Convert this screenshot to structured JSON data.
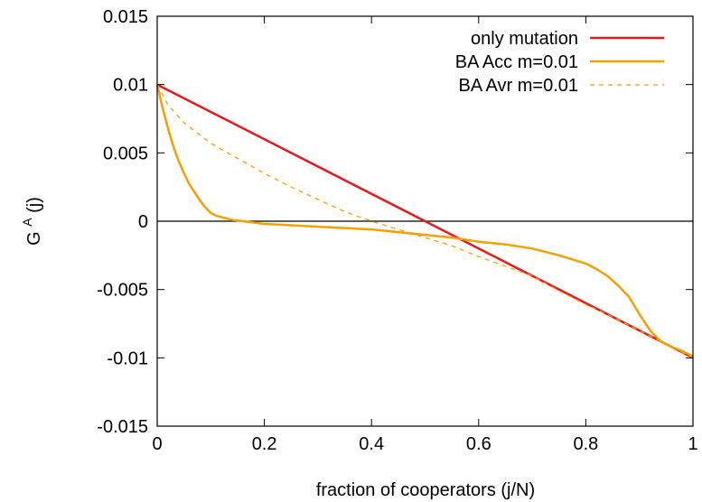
{
  "chart_data": {
    "type": "line",
    "title": "",
    "xlabel": "fraction of cooperators (j/N)",
    "ylabel": "G",
    "ylabel_sup": "A",
    "ylabel_suffix": " (j)",
    "xlim": [
      0,
      1
    ],
    "ylim": [
      -0.015,
      0.015
    ],
    "xticks": [
      0,
      0.2,
      0.4,
      0.6,
      0.8,
      1
    ],
    "xtick_labels": [
      "0",
      "0.2",
      "0.4",
      "0.6",
      "0.8",
      "1"
    ],
    "yticks": [
      -0.015,
      -0.01,
      -0.005,
      0,
      0.005,
      0.01,
      0.015
    ],
    "ytick_labels": [
      "-0.015",
      "-0.01",
      "-0.005",
      "0",
      "0.005",
      "0.01",
      "0.015"
    ],
    "grid": false,
    "legend_position": "top-right",
    "zero_line": true,
    "series": [
      {
        "name": "only mutation",
        "color": "#e41a1c",
        "style": "solid",
        "x": [
          0,
          1
        ],
        "y": [
          0.01,
          -0.01
        ]
      },
      {
        "name": "BA Acc m=0.01",
        "color": "#f5a000",
        "style": "solid",
        "x": [
          0,
          0.01,
          0.02,
          0.03,
          0.04,
          0.05,
          0.06,
          0.07,
          0.08,
          0.09,
          0.1,
          0.11,
          0.12,
          0.13,
          0.14,
          0.16,
          0.18,
          0.2,
          0.25,
          0.3,
          0.35,
          0.4,
          0.45,
          0.5,
          0.55,
          0.6,
          0.65,
          0.7,
          0.75,
          0.8,
          0.82,
          0.84,
          0.86,
          0.88,
          0.9,
          0.92,
          0.94,
          0.96,
          0.98,
          1.0
        ],
        "y": [
          0.01,
          0.0083,
          0.0068,
          0.0055,
          0.0044,
          0.0035,
          0.0027,
          0.0021,
          0.0015,
          0.001,
          0.0006,
          0.0004,
          0.0003,
          0.0002,
          0.0001,
          0.0,
          -0.0001,
          -0.0002,
          -0.0003,
          -0.0004,
          -0.0005,
          -0.0006,
          -0.0008,
          -0.001,
          -0.0012,
          -0.0015,
          -0.0017,
          -0.002,
          -0.0025,
          -0.0031,
          -0.0035,
          -0.004,
          -0.0047,
          -0.0055,
          -0.0068,
          -0.008,
          -0.0088,
          -0.0092,
          -0.0095,
          -0.0099
        ]
      },
      {
        "name": "BA Avr m=0.01",
        "color": "#f5a000",
        "style": "dashed",
        "x": [
          0,
          0.02,
          0.05,
          0.1,
          0.15,
          0.2,
          0.25,
          0.3,
          0.35,
          0.4,
          0.45,
          0.5,
          0.55,
          0.6,
          0.65,
          0.7,
          0.75,
          0.8,
          0.85,
          0.9,
          0.95,
          1.0
        ],
        "y": [
          0.01,
          0.0085,
          0.0072,
          0.0057,
          0.0046,
          0.0035,
          0.0025,
          0.0016,
          0.0007,
          0.0,
          -0.0006,
          -0.0012,
          -0.0018,
          -0.0026,
          -0.0033,
          -0.004,
          -0.0051,
          -0.0061,
          -0.007,
          -0.008,
          -0.009,
          -0.01
        ]
      }
    ]
  }
}
